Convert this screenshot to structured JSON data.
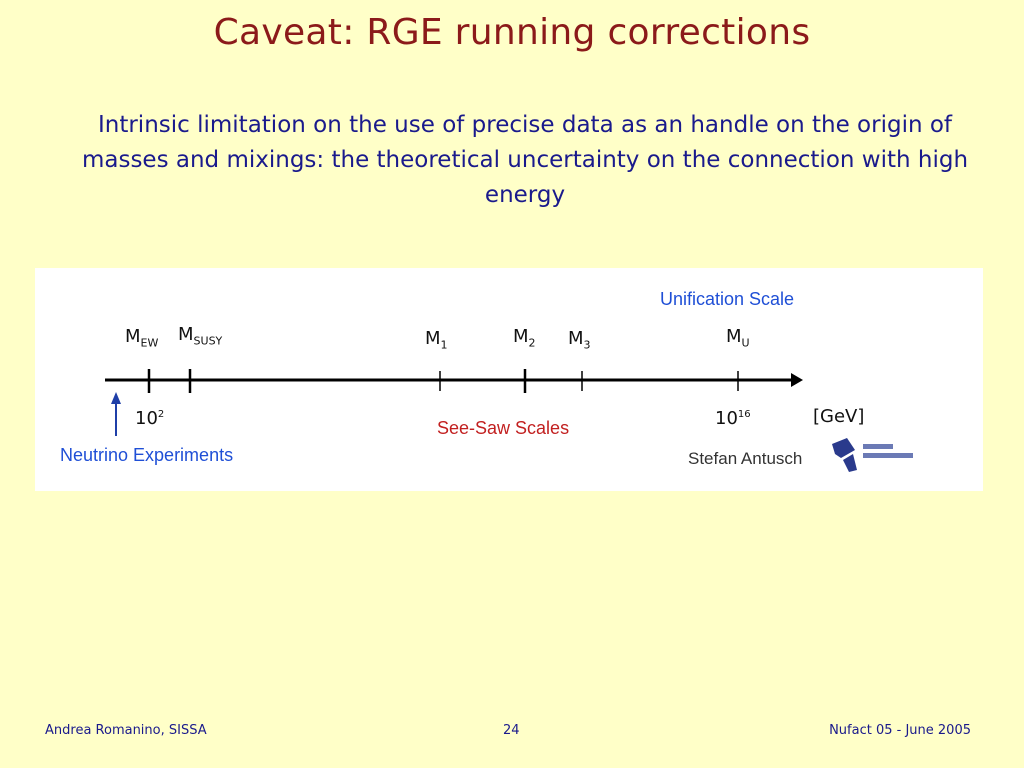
{
  "slide": {
    "title": "Caveat: RGE running corrections",
    "subtitle": "Intrinsic limitation on the use of precise data as an handle on the origin of masses and mixings: the theoretical uncertainty on the connection with high energy"
  },
  "figure": {
    "unification_label": "Unification Scale",
    "scales": [
      {
        "name": "M",
        "sub": "EW"
      },
      {
        "name": "M",
        "sub": "SUSY"
      },
      {
        "name": "M",
        "sub": "1"
      },
      {
        "name": "M",
        "sub": "2"
      },
      {
        "name": "M",
        "sub": "3"
      },
      {
        "name": "M",
        "sub": "U"
      }
    ],
    "tick_low": {
      "base": "10",
      "exp": "2"
    },
    "tick_high": {
      "base": "10",
      "exp": "16"
    },
    "unit": "[GeV]",
    "seesaw_label": "See-Saw Scales",
    "neutrino_label": "Neutrino Experiments",
    "credit": "Stefan Antusch"
  },
  "footer": {
    "author": "Andrea Romanino, SISSA",
    "page": "24",
    "event": "Nufact 05 - June 2005"
  },
  "colors": {
    "background": "#ffffc8",
    "title": "#8b1a1a",
    "subtitle": "#1a1a8c",
    "blue_label": "#1f4fd6",
    "red_label": "#c22020"
  }
}
